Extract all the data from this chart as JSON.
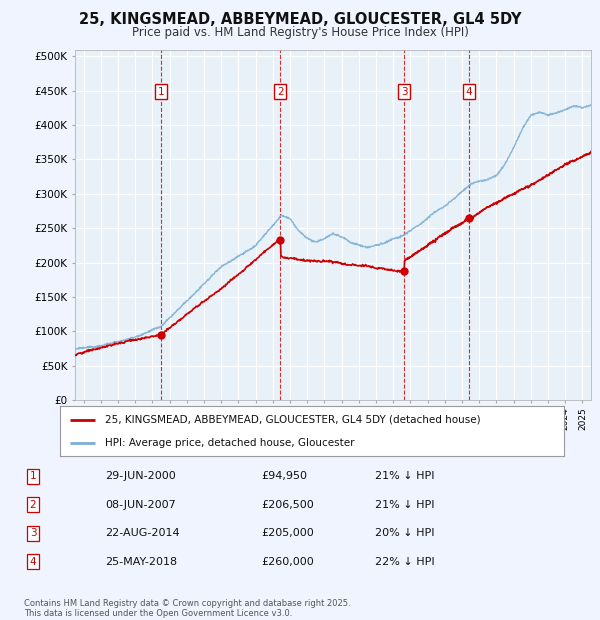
{
  "title": "25, KINGSMEAD, ABBEYMEAD, GLOUCESTER, GL4 5DY",
  "subtitle": "Price paid vs. HM Land Registry's House Price Index (HPI)",
  "background_color": "#f0f4ff",
  "plot_bg_color": "#e8f0f8",
  "transactions": [
    {
      "label": "1",
      "date": "29-JUN-2000",
      "date_x": 2000.49,
      "price": 94950
    },
    {
      "label": "2",
      "date": "08-JUN-2007",
      "date_x": 2007.44,
      "price": 206500
    },
    {
      "label": "3",
      "date": "22-AUG-2014",
      "date_x": 2014.64,
      "price": 205000
    },
    {
      "label": "4",
      "date": "25-MAY-2018",
      "date_x": 2018.4,
      "price": 260000
    }
  ],
  "ylabel_ticks": [
    0,
    50000,
    100000,
    150000,
    200000,
    250000,
    300000,
    350000,
    400000,
    450000,
    500000
  ],
  "ytick_labels": [
    "£0",
    "£50K",
    "£100K",
    "£150K",
    "£200K",
    "£250K",
    "£300K",
    "£350K",
    "£400K",
    "£450K",
    "£500K"
  ],
  "xmin": 1995.5,
  "xmax": 2025.5,
  "ymin": 0,
  "ymax": 510000,
  "red_color": "#cc0000",
  "blue_color": "#7aafd4",
  "legend_line1": "25, KINGSMEAD, ABBEYMEAD, GLOUCESTER, GL4 5DY (detached house)",
  "legend_line2": "HPI: Average price, detached house, Gloucester",
  "footer_line1": "Contains HM Land Registry data © Crown copyright and database right 2025.",
  "footer_line2": "This data is licensed under the Open Government Licence v3.0.",
  "table_rows": [
    [
      "1",
      "29-JUN-2000",
      "£94,950",
      "21% ↓ HPI"
    ],
    [
      "2",
      "08-JUN-2007",
      "£206,500",
      "21% ↓ HPI"
    ],
    [
      "3",
      "22-AUG-2014",
      "£205,000",
      "20% ↓ HPI"
    ],
    [
      "4",
      "25-MAY-2018",
      "£260,000",
      "22% ↓ HPI"
    ]
  ]
}
